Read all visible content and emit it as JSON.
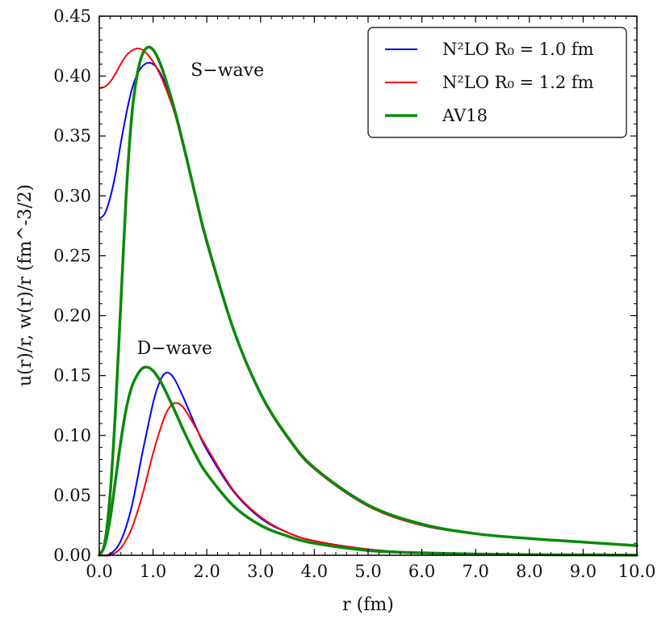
{
  "chart_data": {
    "type": "line",
    "xlabel": "r (fm)",
    "ylabel": "u(r)/r, w(r)/r (fm^-3/2)",
    "xlim": [
      0,
      10
    ],
    "ylim": [
      0,
      0.45
    ],
    "xticks": [
      "0.0",
      "1.0",
      "2.0",
      "3.0",
      "4.0",
      "5.0",
      "6.0",
      "7.0",
      "8.0",
      "9.0",
      "10.0"
    ],
    "yticks": [
      "0.00",
      "0.05",
      "0.10",
      "0.15",
      "0.20",
      "0.25",
      "0.30",
      "0.35",
      "0.40",
      "0.45"
    ],
    "annotations": [
      {
        "text": "S−wave",
        "x": 1.7,
        "y": 0.4
      },
      {
        "text": "D−wave",
        "x": 0.7,
        "y": 0.168
      }
    ],
    "legend": {
      "placement": "top-right",
      "entries": [
        "N²LO R₀ = 1.0 fm",
        "N²LO R₀ = 1.2 fm",
        "AV18"
      ]
    },
    "series": [
      {
        "name": "N2LO R0 = 1.0 fm (S-wave)",
        "color": "#0000ff",
        "width": 2,
        "x": [
          0,
          0.1,
          0.2,
          0.3,
          0.4,
          0.5,
          0.6,
          0.7,
          0.8,
          0.9,
          1.0,
          1.1,
          1.2,
          1.4,
          1.6,
          1.8,
          2.0,
          2.5,
          3.0,
          3.5,
          4.0,
          5.0,
          6.0,
          7.0,
          8.0,
          9.0,
          10.0
        ],
        "y": [
          0.281,
          0.285,
          0.298,
          0.318,
          0.344,
          0.368,
          0.388,
          0.401,
          0.408,
          0.411,
          0.41,
          0.405,
          0.396,
          0.37,
          0.334,
          0.296,
          0.26,
          0.187,
          0.134,
          0.098,
          0.072,
          0.041,
          0.025,
          0.018,
          0.014,
          0.011,
          0.008
        ]
      },
      {
        "name": "N2LO R0 = 1.2 fm (S-wave)",
        "color": "#ff0000",
        "width": 2,
        "x": [
          0,
          0.1,
          0.2,
          0.3,
          0.4,
          0.5,
          0.6,
          0.7,
          0.8,
          0.9,
          1.0,
          1.1,
          1.2,
          1.4,
          1.6,
          1.8,
          2.0,
          2.5,
          3.0,
          3.5,
          4.0,
          5.0,
          6.0,
          7.0,
          8.0,
          9.0,
          10.0
        ],
        "y": [
          0.39,
          0.391,
          0.395,
          0.402,
          0.41,
          0.417,
          0.421,
          0.423,
          0.422,
          0.418,
          0.412,
          0.404,
          0.394,
          0.369,
          0.334,
          0.296,
          0.26,
          0.187,
          0.134,
          0.098,
          0.072,
          0.041,
          0.025,
          0.018,
          0.014,
          0.011,
          0.008
        ]
      },
      {
        "name": "AV18 (S-wave)",
        "color": "#0a8a0a",
        "width": 3.5,
        "x": [
          0,
          0.1,
          0.2,
          0.3,
          0.4,
          0.5,
          0.6,
          0.7,
          0.8,
          0.9,
          1.0,
          1.1,
          1.2,
          1.4,
          1.6,
          1.8,
          2.0,
          2.5,
          3.0,
          3.5,
          4.0,
          5.0,
          6.0,
          7.0,
          8.0,
          9.0,
          10.0
        ],
        "y": [
          0.0,
          0.01,
          0.05,
          0.12,
          0.21,
          0.3,
          0.365,
          0.4,
          0.418,
          0.424,
          0.422,
          0.414,
          0.402,
          0.372,
          0.336,
          0.298,
          0.262,
          0.188,
          0.135,
          0.099,
          0.073,
          0.042,
          0.026,
          0.018,
          0.014,
          0.011,
          0.008
        ]
      },
      {
        "name": "N2LO R0 = 1.0 fm (D-wave)",
        "color": "#0000ff",
        "width": 2,
        "x": [
          0,
          0.2,
          0.4,
          0.6,
          0.8,
          1.0,
          1.1,
          1.2,
          1.3,
          1.4,
          1.5,
          1.6,
          1.8,
          2.0,
          2.5,
          3.0,
          3.5,
          4.0,
          5.0,
          6.0,
          7.0,
          8.0,
          9.0,
          10.0
        ],
        "y": [
          0.0,
          0.001,
          0.012,
          0.04,
          0.085,
          0.127,
          0.142,
          0.151,
          0.152,
          0.147,
          0.138,
          0.128,
          0.107,
          0.088,
          0.053,
          0.031,
          0.019,
          0.012,
          0.005,
          0.002,
          0.001,
          0.0005,
          0.0003,
          0.0001
        ]
      },
      {
        "name": "N2LO R0 = 1.2 fm (D-wave)",
        "color": "#ff0000",
        "width": 2,
        "x": [
          0,
          0.2,
          0.4,
          0.6,
          0.8,
          1.0,
          1.2,
          1.3,
          1.4,
          1.5,
          1.6,
          1.8,
          2.0,
          2.5,
          3.0,
          3.5,
          4.0,
          5.0,
          6.0,
          7.0,
          8.0,
          9.0,
          10.0
        ],
        "y": [
          0.0,
          0.0,
          0.006,
          0.022,
          0.05,
          0.085,
          0.114,
          0.123,
          0.127,
          0.126,
          0.121,
          0.106,
          0.09,
          0.054,
          0.032,
          0.019,
          0.012,
          0.005,
          0.002,
          0.001,
          0.0005,
          0.0003,
          0.0001
        ]
      },
      {
        "name": "AV18 (D-wave)",
        "color": "#0a8a0a",
        "width": 3.5,
        "x": [
          0,
          0.1,
          0.2,
          0.3,
          0.4,
          0.5,
          0.6,
          0.7,
          0.8,
          0.9,
          1.0,
          1.1,
          1.2,
          1.4,
          1.6,
          1.8,
          2.0,
          2.5,
          3.0,
          3.5,
          4.0,
          5.0,
          6.0,
          7.0,
          8.0,
          9.0,
          10.0
        ],
        "y": [
          0.0,
          0.008,
          0.03,
          0.062,
          0.095,
          0.122,
          0.14,
          0.15,
          0.156,
          0.157,
          0.154,
          0.148,
          0.14,
          0.121,
          0.101,
          0.083,
          0.068,
          0.041,
          0.025,
          0.016,
          0.01,
          0.004,
          0.002,
          0.001,
          0.0005,
          0.0003,
          0.0001
        ]
      }
    ]
  }
}
